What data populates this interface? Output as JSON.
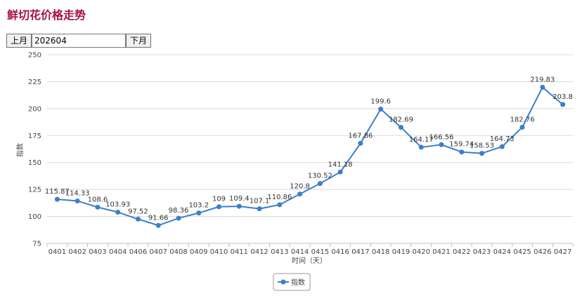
{
  "page": {
    "title": "鲜切花价格走势"
  },
  "nav": {
    "prev_label": "上月",
    "month_value": "202604",
    "next_label": "下月"
  },
  "colors": {
    "title": "#a8123e",
    "series": "#3a7fcc",
    "grid": "#d8d8d8"
  },
  "chart_data": {
    "type": "line",
    "title": "",
    "xlabel": "时间（天）",
    "ylabel": "指数",
    "ylim": [
      75,
      250
    ],
    "yticks": [
      75,
      100,
      125,
      150,
      175,
      200,
      225,
      250
    ],
    "grid": true,
    "legend_position": "bottom-center",
    "categories": [
      "0401",
      "0402",
      "0403",
      "0404",
      "0406",
      "0407",
      "0408",
      "0409",
      "0410",
      "0411",
      "0412",
      "0413",
      "0414",
      "0415",
      "0416",
      "0417",
      "0418",
      "0419",
      "0420",
      "0421",
      "0422",
      "0423",
      "0424",
      "0425",
      "0426",
      "0427"
    ],
    "series": [
      {
        "name": "指数",
        "color": "#3a7fcc",
        "values": [
          115.87,
          114.33,
          108.6,
          103.93,
          97.52,
          91.66,
          98.36,
          103.2,
          109,
          109.4,
          107.1,
          110.86,
          120.8,
          130.52,
          141.18,
          167.86,
          199.6,
          182.69,
          164.17,
          166.56,
          159.74,
          158.53,
          164.73,
          182.76,
          219.83,
          203.8
        ],
        "labels": [
          "115.87",
          "114.33",
          "108.6",
          "103.93",
          "97.52",
          "91.66",
          "98.36",
          "103.2",
          "109",
          "109.4",
          "107.1",
          "110.86",
          "120.8",
          "130.52",
          "141.18",
          "167.86",
          "199.6",
          "182.69",
          "164.17",
          "166.56",
          "159.74",
          "158.53",
          "164.73",
          "182.76",
          "219.83",
          "203.8"
        ]
      }
    ]
  }
}
